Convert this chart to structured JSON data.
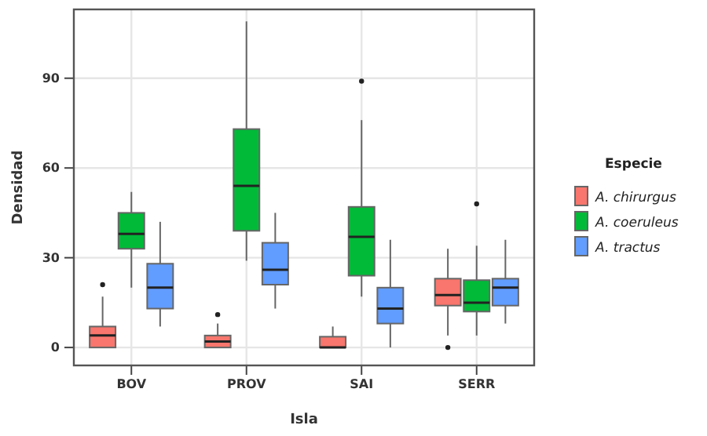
{
  "chart_data": {
    "type": "box",
    "xlabel": "Isla",
    "ylabel": "Densidad",
    "legend_title": "Especie",
    "legend": "right",
    "grid": true,
    "categories": [
      "BOV",
      "PROV",
      "SAI",
      "SERR"
    ],
    "ylim": [
      -6,
      113
    ],
    "yticks": [
      0,
      30,
      60,
      90
    ],
    "series": [
      {
        "name": "A. chirurgus",
        "color": "#f8766d",
        "boxes": [
          {
            "low": 0,
            "q1": 0,
            "median": 4,
            "q3": 7,
            "high": 17,
            "outliers": [
              21
            ]
          },
          {
            "low": 0,
            "q1": 0,
            "median": 2,
            "q3": 4,
            "high": 8,
            "outliers": [
              11
            ]
          },
          {
            "low": 0,
            "q1": 0,
            "median": 0,
            "q3": 3.6,
            "high": 7
          },
          {
            "low": 4,
            "q1": 14,
            "median": 17.5,
            "q3": 23,
            "high": 33,
            "outliers": [
              0
            ]
          }
        ]
      },
      {
        "name": "A. coeruleus",
        "color": "#00ba38",
        "boxes": [
          {
            "low": 20,
            "q1": 33,
            "median": 38,
            "q3": 45,
            "high": 52
          },
          {
            "low": 29,
            "q1": 39,
            "median": 54,
            "q3": 73,
            "high": 109
          },
          {
            "low": 17,
            "q1": 24,
            "median": 37,
            "q3": 47,
            "high": 76,
            "outliers": [
              89
            ]
          },
          {
            "low": 4,
            "q1": 12,
            "median": 15,
            "q3": 22.5,
            "high": 34,
            "outliers": [
              48
            ]
          }
        ]
      },
      {
        "name": "A. tractus",
        "color": "#619cff",
        "boxes": [
          {
            "low": 7,
            "q1": 13,
            "median": 20,
            "q3": 28,
            "high": 42
          },
          {
            "low": 13,
            "q1": 21,
            "median": 26,
            "q3": 35,
            "high": 45
          },
          {
            "low": 0,
            "q1": 8,
            "median": 13,
            "q3": 20,
            "high": 36
          },
          {
            "low": 8,
            "q1": 14,
            "median": 20,
            "q3": 23,
            "high": 36
          }
        ]
      }
    ]
  }
}
